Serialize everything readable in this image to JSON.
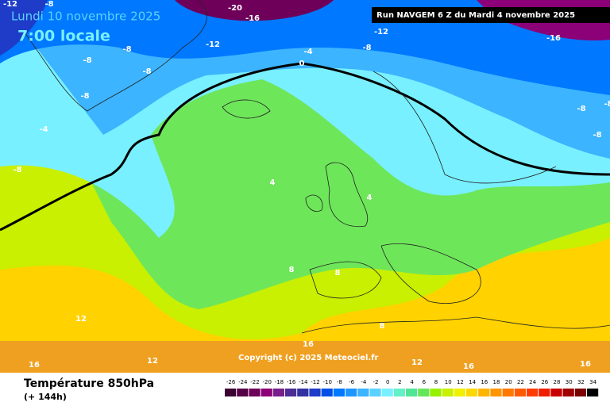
{
  "header": {
    "date": "Lundi 10 novembre 2025",
    "time": "7:00 locale",
    "run": "Run NAVGEM 6 Z du Mardi 4 novembre 2025"
  },
  "copyright": "Copyright (c) 2025 Meteociel.fr",
  "footer": {
    "title": "Température 850hPa",
    "lead": "(+ 144h)"
  },
  "contour_labels": [
    "-12",
    "-8",
    "-20",
    "-16",
    "-12",
    "-16",
    "-12",
    "-8",
    "-8",
    "-4",
    "-8",
    "0",
    "-8",
    "-8",
    "-8",
    "-8",
    "-8",
    "-4",
    "-8",
    "4",
    "4",
    "8",
    "8",
    "12",
    "8",
    "16",
    "16",
    "12",
    "12",
    "16",
    "16"
  ],
  "scale": {
    "values": [
      -26,
      -24,
      -22,
      -20,
      -18,
      -16,
      -14,
      -12,
      -10,
      -8,
      -6,
      -4,
      -2,
      0,
      2,
      4,
      6,
      8,
      10,
      12,
      14,
      16,
      18,
      20,
      22,
      24,
      26,
      28,
      30,
      32,
      34
    ],
    "colors": [
      "#3c0032",
      "#550046",
      "#6e005a",
      "#8c0078",
      "#7a1e8c",
      "#4b2d96",
      "#3232a0",
      "#1e3cc8",
      "#0050e6",
      "#0078ff",
      "#1e96ff",
      "#3cb4ff",
      "#5ad2ff",
      "#78f0ff",
      "#64f0c8",
      "#50e696",
      "#64e65a",
      "#96f000",
      "#c8f000",
      "#f0f000",
      "#ffd700",
      "#ffb400",
      "#ff9600",
      "#ff7800",
      "#ff5a00",
      "#ff3c00",
      "#f01e00",
      "#c80000",
      "#a00000",
      "#780000",
      "#000000"
    ]
  }
}
